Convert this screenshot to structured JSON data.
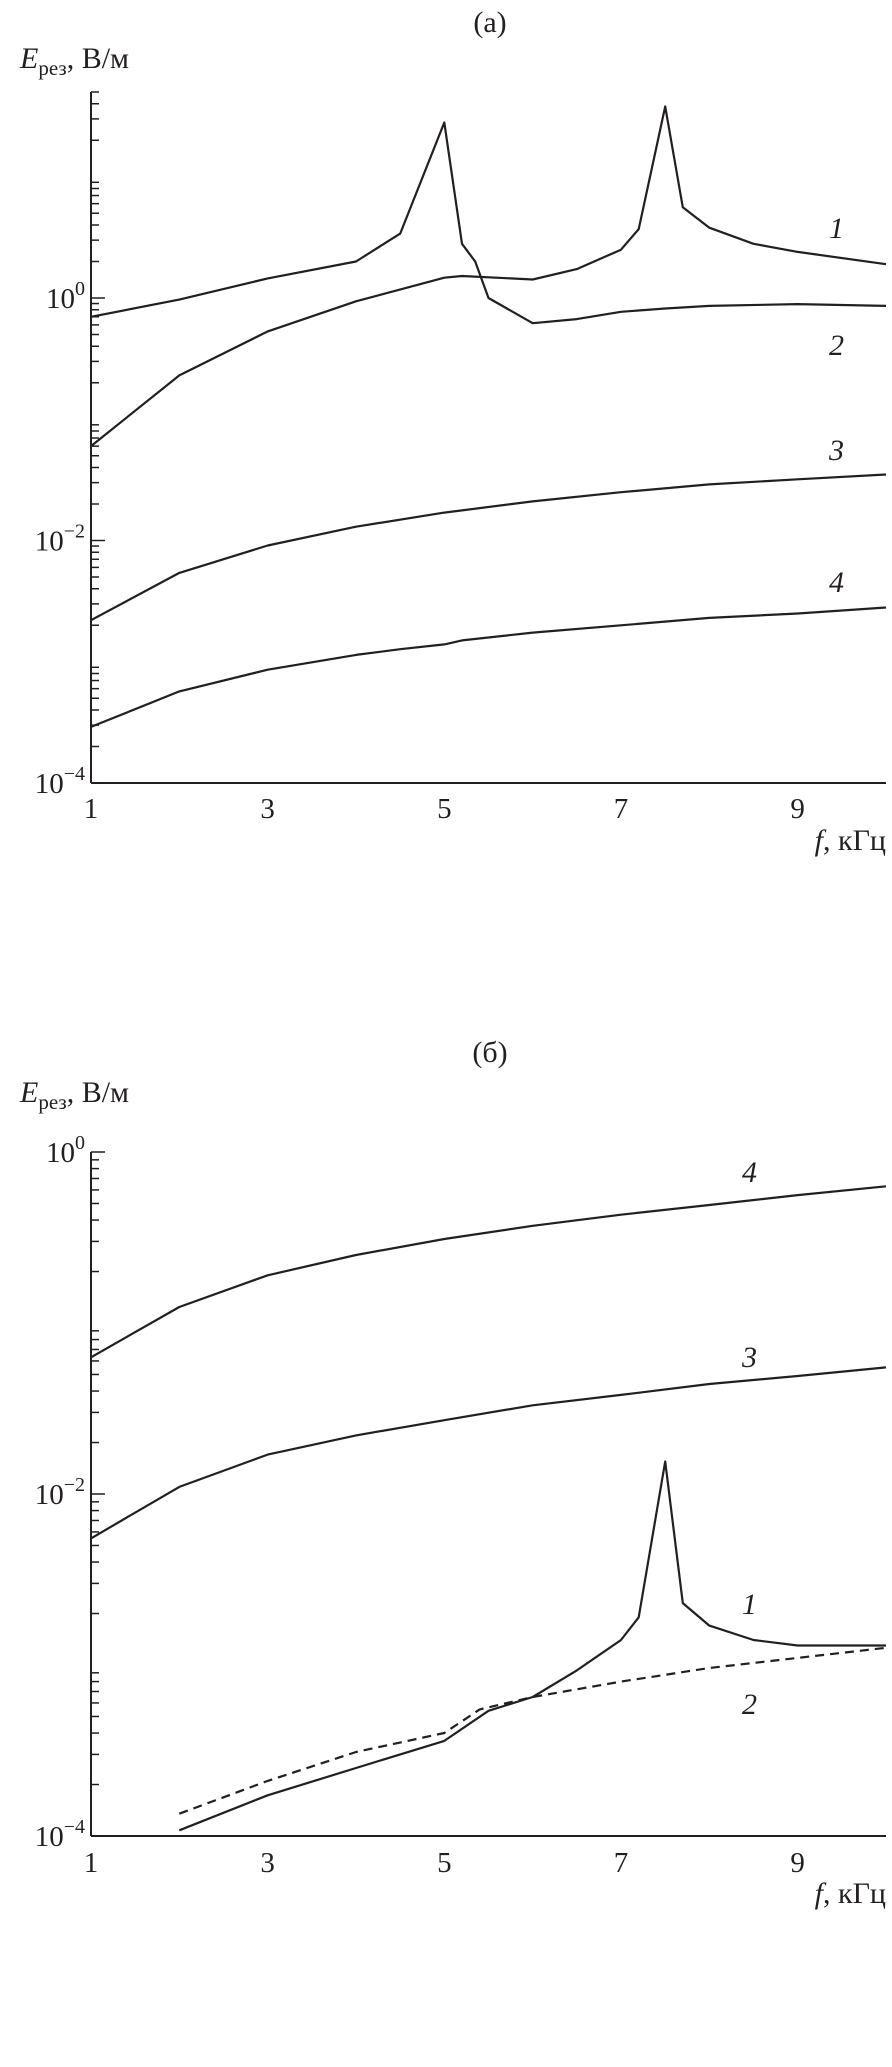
{
  "chart_data": [
    {
      "type": "line",
      "title": "(а)",
      "ylabel_main": "E",
      "ylabel_sub": "рез",
      "ylabel_unit": ", В/м",
      "xlabel_main": "f",
      "xlabel_unit": ", кГц",
      "xlim": [
        1,
        10
      ],
      "ylim": [
        0.0001,
        50
      ],
      "yscale": "log",
      "grid": false,
      "x_ticks": [
        "1",
        "3",
        "5",
        "7",
        "9"
      ],
      "y_ticks": [
        {
          "base": "10",
          "exp": "0",
          "value": 1
        },
        {
          "base": "10",
          "exp": "−2",
          "value": 0.01
        },
        {
          "base": "10",
          "exp": "−4",
          "value": 0.0001
        }
      ],
      "line_color": "#231f20",
      "series": [
        {
          "name": "1",
          "style": "solid",
          "x": [
            1,
            2,
            3,
            4,
            5,
            5.2,
            6,
            6.5,
            7,
            7.2,
            7.5,
            7.7,
            8,
            8.5,
            9,
            10
          ],
          "y": [
            0.06,
            0.23,
            0.53,
            0.94,
            1.47,
            1.52,
            1.42,
            1.73,
            2.5,
            3.7,
            38,
            5.6,
            3.8,
            2.8,
            2.4,
            1.9
          ]
        },
        {
          "name": "2",
          "style": "solid",
          "x": [
            1,
            2,
            3,
            4,
            4.5,
            5,
            5.2,
            5.35,
            5.5,
            6,
            6.5,
            7,
            7.5,
            8,
            9,
            10
          ],
          "y": [
            0.7,
            0.97,
            1.45,
            2.0,
            3.4,
            28,
            2.8,
            2.0,
            1.0,
            0.62,
            0.67,
            0.77,
            0.82,
            0.86,
            0.89,
            0.86
          ]
        },
        {
          "name": "3",
          "style": "solid",
          "x": [
            1,
            2,
            3,
            4,
            5,
            6,
            7,
            8,
            9,
            10
          ],
          "y": [
            0.0022,
            0.0054,
            0.0091,
            0.013,
            0.017,
            0.021,
            0.025,
            0.029,
            0.032,
            0.035
          ]
        },
        {
          "name": "4",
          "style": "solid",
          "x": [
            1,
            2,
            3,
            4,
            4.5,
            5,
            5.2,
            6,
            7,
            8,
            9,
            10
          ],
          "y": [
            0.00029,
            0.00057,
            0.00086,
            0.00114,
            0.00127,
            0.00139,
            0.0015,
            0.00174,
            0.002,
            0.0023,
            0.0025,
            0.0028
          ]
        }
      ]
    },
    {
      "type": "line",
      "title": "(б)",
      "ylabel_main": "E",
      "ylabel_sub": "рез",
      "ylabel_unit": ", В/м",
      "xlabel_main": "f",
      "xlabel_unit": ", кГц",
      "xlim": [
        1,
        10
      ],
      "ylim": [
        0.0001,
        1
      ],
      "yscale": "log",
      "grid": false,
      "x_ticks": [
        "1",
        "3",
        "5",
        "7",
        "9"
      ],
      "y_ticks": [
        {
          "base": "10",
          "exp": "0",
          "value": 1
        },
        {
          "base": "10",
          "exp": "−2",
          "value": 0.01
        },
        {
          "base": "10",
          "exp": "−4",
          "value": 0.0001
        }
      ],
      "line_color": "#231f20",
      "series": [
        {
          "name": "4",
          "style": "solid",
          "x": [
            1,
            2,
            3,
            4,
            5,
            6,
            7,
            8,
            9,
            10
          ],
          "y": [
            0.063,
            0.124,
            0.19,
            0.25,
            0.31,
            0.37,
            0.43,
            0.49,
            0.56,
            0.63
          ]
        },
        {
          "name": "3",
          "style": "solid",
          "x": [
            1,
            2,
            3,
            4,
            5,
            6,
            7,
            8,
            9,
            10
          ],
          "y": [
            0.0055,
            0.011,
            0.017,
            0.022,
            0.027,
            0.033,
            0.038,
            0.044,
            0.049,
            0.055
          ]
        },
        {
          "name": "1",
          "style": "solid",
          "x": [
            2,
            3,
            4,
            5,
            5.5,
            6,
            6.5,
            7,
            7.2,
            7.5,
            7.7,
            8,
            8.5,
            9,
            10
          ],
          "y": [
            0.000108,
            0.000173,
            0.00025,
            0.00036,
            0.00054,
            0.00065,
            0.00093,
            0.0014,
            0.0019,
            0.0155,
            0.0023,
            0.0017,
            0.0014,
            0.0013,
            0.0013
          ]
        },
        {
          "name": "2",
          "style": "dashed",
          "x": [
            2,
            3,
            4,
            5,
            5.4,
            6,
            7,
            8,
            9,
            10
          ],
          "y": [
            0.000135,
            0.00021,
            0.00031,
            0.0004,
            0.00055,
            0.00065,
            0.0008,
            0.00096,
            0.0011,
            0.00126
          ]
        }
      ]
    }
  ]
}
